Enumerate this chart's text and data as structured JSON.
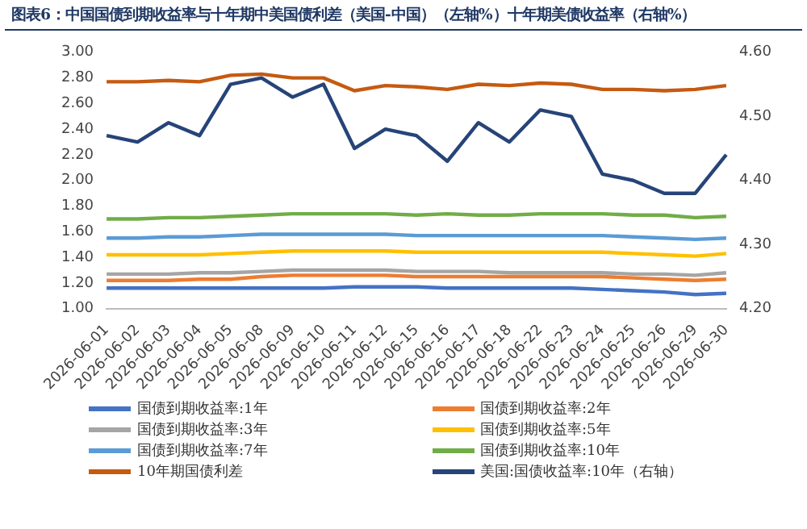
{
  "chart_data": {
    "type": "line",
    "title": "图表6：中国国债到期收益率与十年期中美国债利差（美国-中国）（左轴%）十年期美债收益率（右轴%）",
    "categories": [
      "2026-06-01",
      "2026-06-02",
      "2026-06-03",
      "2026-06-04",
      "2026-06-05",
      "2026-06-08",
      "2026-06-09",
      "2026-06-10",
      "2026-06-11",
      "2026-06-12",
      "2026-06-15",
      "2026-06-16",
      "2026-06-17",
      "2026-06-18",
      "2026-06-22",
      "2026-06-23",
      "2026-06-24",
      "2026-06-25",
      "2026-06-26",
      "2026-06-29",
      "2026-06-30"
    ],
    "series": [
      {
        "name": "国债到期收益率:1年",
        "color": "#4472c4",
        "values": [
          1.16,
          1.16,
          1.16,
          1.16,
          1.16,
          1.16,
          1.16,
          1.16,
          1.17,
          1.17,
          1.17,
          1.16,
          1.16,
          1.16,
          1.16,
          1.16,
          1.15,
          1.14,
          1.13,
          1.11,
          1.12
        ]
      },
      {
        "name": "国债到期收益率:2年",
        "color": "#ed7d31",
        "values": [
          1.22,
          1.22,
          1.22,
          1.23,
          1.23,
          1.25,
          1.26,
          1.26,
          1.26,
          1.26,
          1.25,
          1.25,
          1.25,
          1.25,
          1.25,
          1.25,
          1.25,
          1.24,
          1.23,
          1.22,
          1.23
        ]
      },
      {
        "name": "国债到期收益率:3年",
        "color": "#a5a5a5",
        "values": [
          1.27,
          1.27,
          1.27,
          1.28,
          1.28,
          1.29,
          1.3,
          1.3,
          1.3,
          1.3,
          1.29,
          1.29,
          1.29,
          1.28,
          1.28,
          1.28,
          1.28,
          1.27,
          1.27,
          1.26,
          1.28
        ]
      },
      {
        "name": "国债到期收益率:5年",
        "color": "#ffc000",
        "values": [
          1.42,
          1.42,
          1.42,
          1.42,
          1.43,
          1.44,
          1.45,
          1.45,
          1.45,
          1.45,
          1.44,
          1.44,
          1.44,
          1.44,
          1.44,
          1.44,
          1.44,
          1.43,
          1.42,
          1.41,
          1.43
        ]
      },
      {
        "name": "国债到期收益率:7年",
        "color": "#5b9bd5",
        "values": [
          1.55,
          1.55,
          1.56,
          1.56,
          1.57,
          1.58,
          1.58,
          1.58,
          1.58,
          1.58,
          1.57,
          1.57,
          1.57,
          1.57,
          1.57,
          1.57,
          1.57,
          1.56,
          1.55,
          1.54,
          1.55
        ]
      },
      {
        "name": "国债到期收益率:10年",
        "color": "#70ad47",
        "values": [
          1.7,
          1.7,
          1.71,
          1.71,
          1.72,
          1.73,
          1.74,
          1.74,
          1.74,
          1.74,
          1.73,
          1.74,
          1.73,
          1.73,
          1.74,
          1.74,
          1.74,
          1.73,
          1.73,
          1.71,
          1.72
        ]
      },
      {
        "name": "10年期国债利差",
        "color": "#c55a11",
        "values": [
          2.77,
          2.77,
          2.78,
          2.77,
          2.82,
          2.83,
          2.8,
          2.8,
          2.7,
          2.74,
          2.73,
          2.71,
          2.75,
          2.74,
          2.76,
          2.75,
          2.71,
          2.71,
          2.7,
          2.71,
          2.74
        ]
      },
      {
        "name": "美国:国债收益率:10年（右轴）",
        "color": "#264478",
        "axis": "y2",
        "values": [
          4.47,
          4.46,
          4.49,
          4.47,
          4.55,
          4.56,
          4.53,
          4.55,
          4.45,
          4.48,
          4.47,
          4.43,
          4.49,
          4.46,
          4.51,
          4.5,
          4.41,
          4.4,
          4.38,
          4.38,
          4.44
        ]
      }
    ],
    "ylim": [
      1.0,
      3.0
    ],
    "yticks": [
      {
        "value": 1.0,
        "label": "1.00"
      },
      {
        "value": 1.2,
        "label": "1.20"
      },
      {
        "value": 1.4,
        "label": "1.40"
      },
      {
        "value": 1.6,
        "label": "1.60"
      },
      {
        "value": 1.8,
        "label": "1.80"
      },
      {
        "value": 2.0,
        "label": "2.00"
      },
      {
        "value": 2.2,
        "label": "2.20"
      },
      {
        "value": 2.4,
        "label": "2.40"
      },
      {
        "value": 2.6,
        "label": "2.60"
      },
      {
        "value": 2.8,
        "label": "2.80"
      },
      {
        "value": 3.0,
        "label": "3.00"
      }
    ],
    "y2lim": [
      4.2,
      4.6
    ],
    "y2ticks": [
      {
        "value": 4.2,
        "label": "4.20"
      },
      {
        "value": 4.3,
        "label": "4.30"
      },
      {
        "value": 4.4,
        "label": "4.40"
      },
      {
        "value": 4.5,
        "label": "4.50"
      },
      {
        "value": 4.6,
        "label": "4.60"
      }
    ],
    "grid": false,
    "legend": "bottom",
    "marker": "none",
    "line_style": "solid"
  }
}
